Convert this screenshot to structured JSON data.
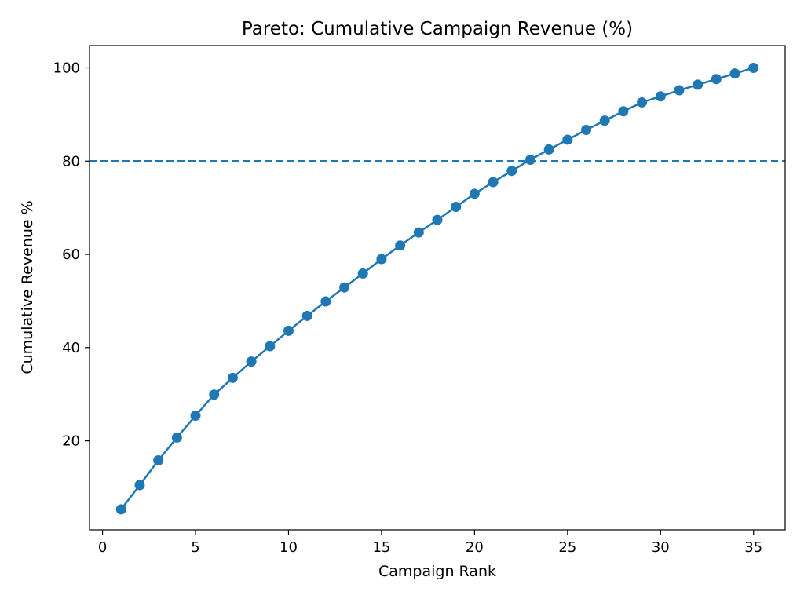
{
  "chart_data": {
    "type": "line",
    "title": "Pareto: Cumulative Campaign Revenue (%)",
    "xlabel": "Campaign Rank",
    "ylabel": "Cumulative Revenue %",
    "xlim": [
      -0.7,
      36.7
    ],
    "ylim": [
      0.9,
      104.8
    ],
    "xticks": [
      0,
      5,
      10,
      15,
      20,
      25,
      30,
      35
    ],
    "yticks": [
      20,
      40,
      60,
      80,
      100
    ],
    "grid": false,
    "legend": "none",
    "reference_line": {
      "y": 80,
      "style": "dashed"
    },
    "x": [
      1,
      2,
      3,
      4,
      5,
      6,
      7,
      8,
      9,
      10,
      11,
      12,
      13,
      14,
      15,
      16,
      17,
      18,
      19,
      20,
      21,
      22,
      23,
      24,
      25,
      26,
      27,
      28,
      29,
      30,
      31,
      32,
      33,
      34,
      35
    ],
    "series": [
      {
        "values": [
          5.3,
          10.5,
          15.8,
          20.7,
          25.4,
          29.9,
          33.5,
          37.0,
          40.3,
          43.6,
          46.8,
          49.9,
          52.9,
          55.9,
          59.0,
          61.9,
          64.7,
          67.4,
          70.2,
          73.0,
          75.5,
          77.9,
          80.3,
          82.5,
          84.6,
          86.7,
          88.7,
          90.7,
          92.6,
          93.9,
          95.2,
          96.4,
          97.6,
          98.8,
          100.0
        ],
        "color": "#1f77b4",
        "marker": "circle"
      }
    ]
  }
}
